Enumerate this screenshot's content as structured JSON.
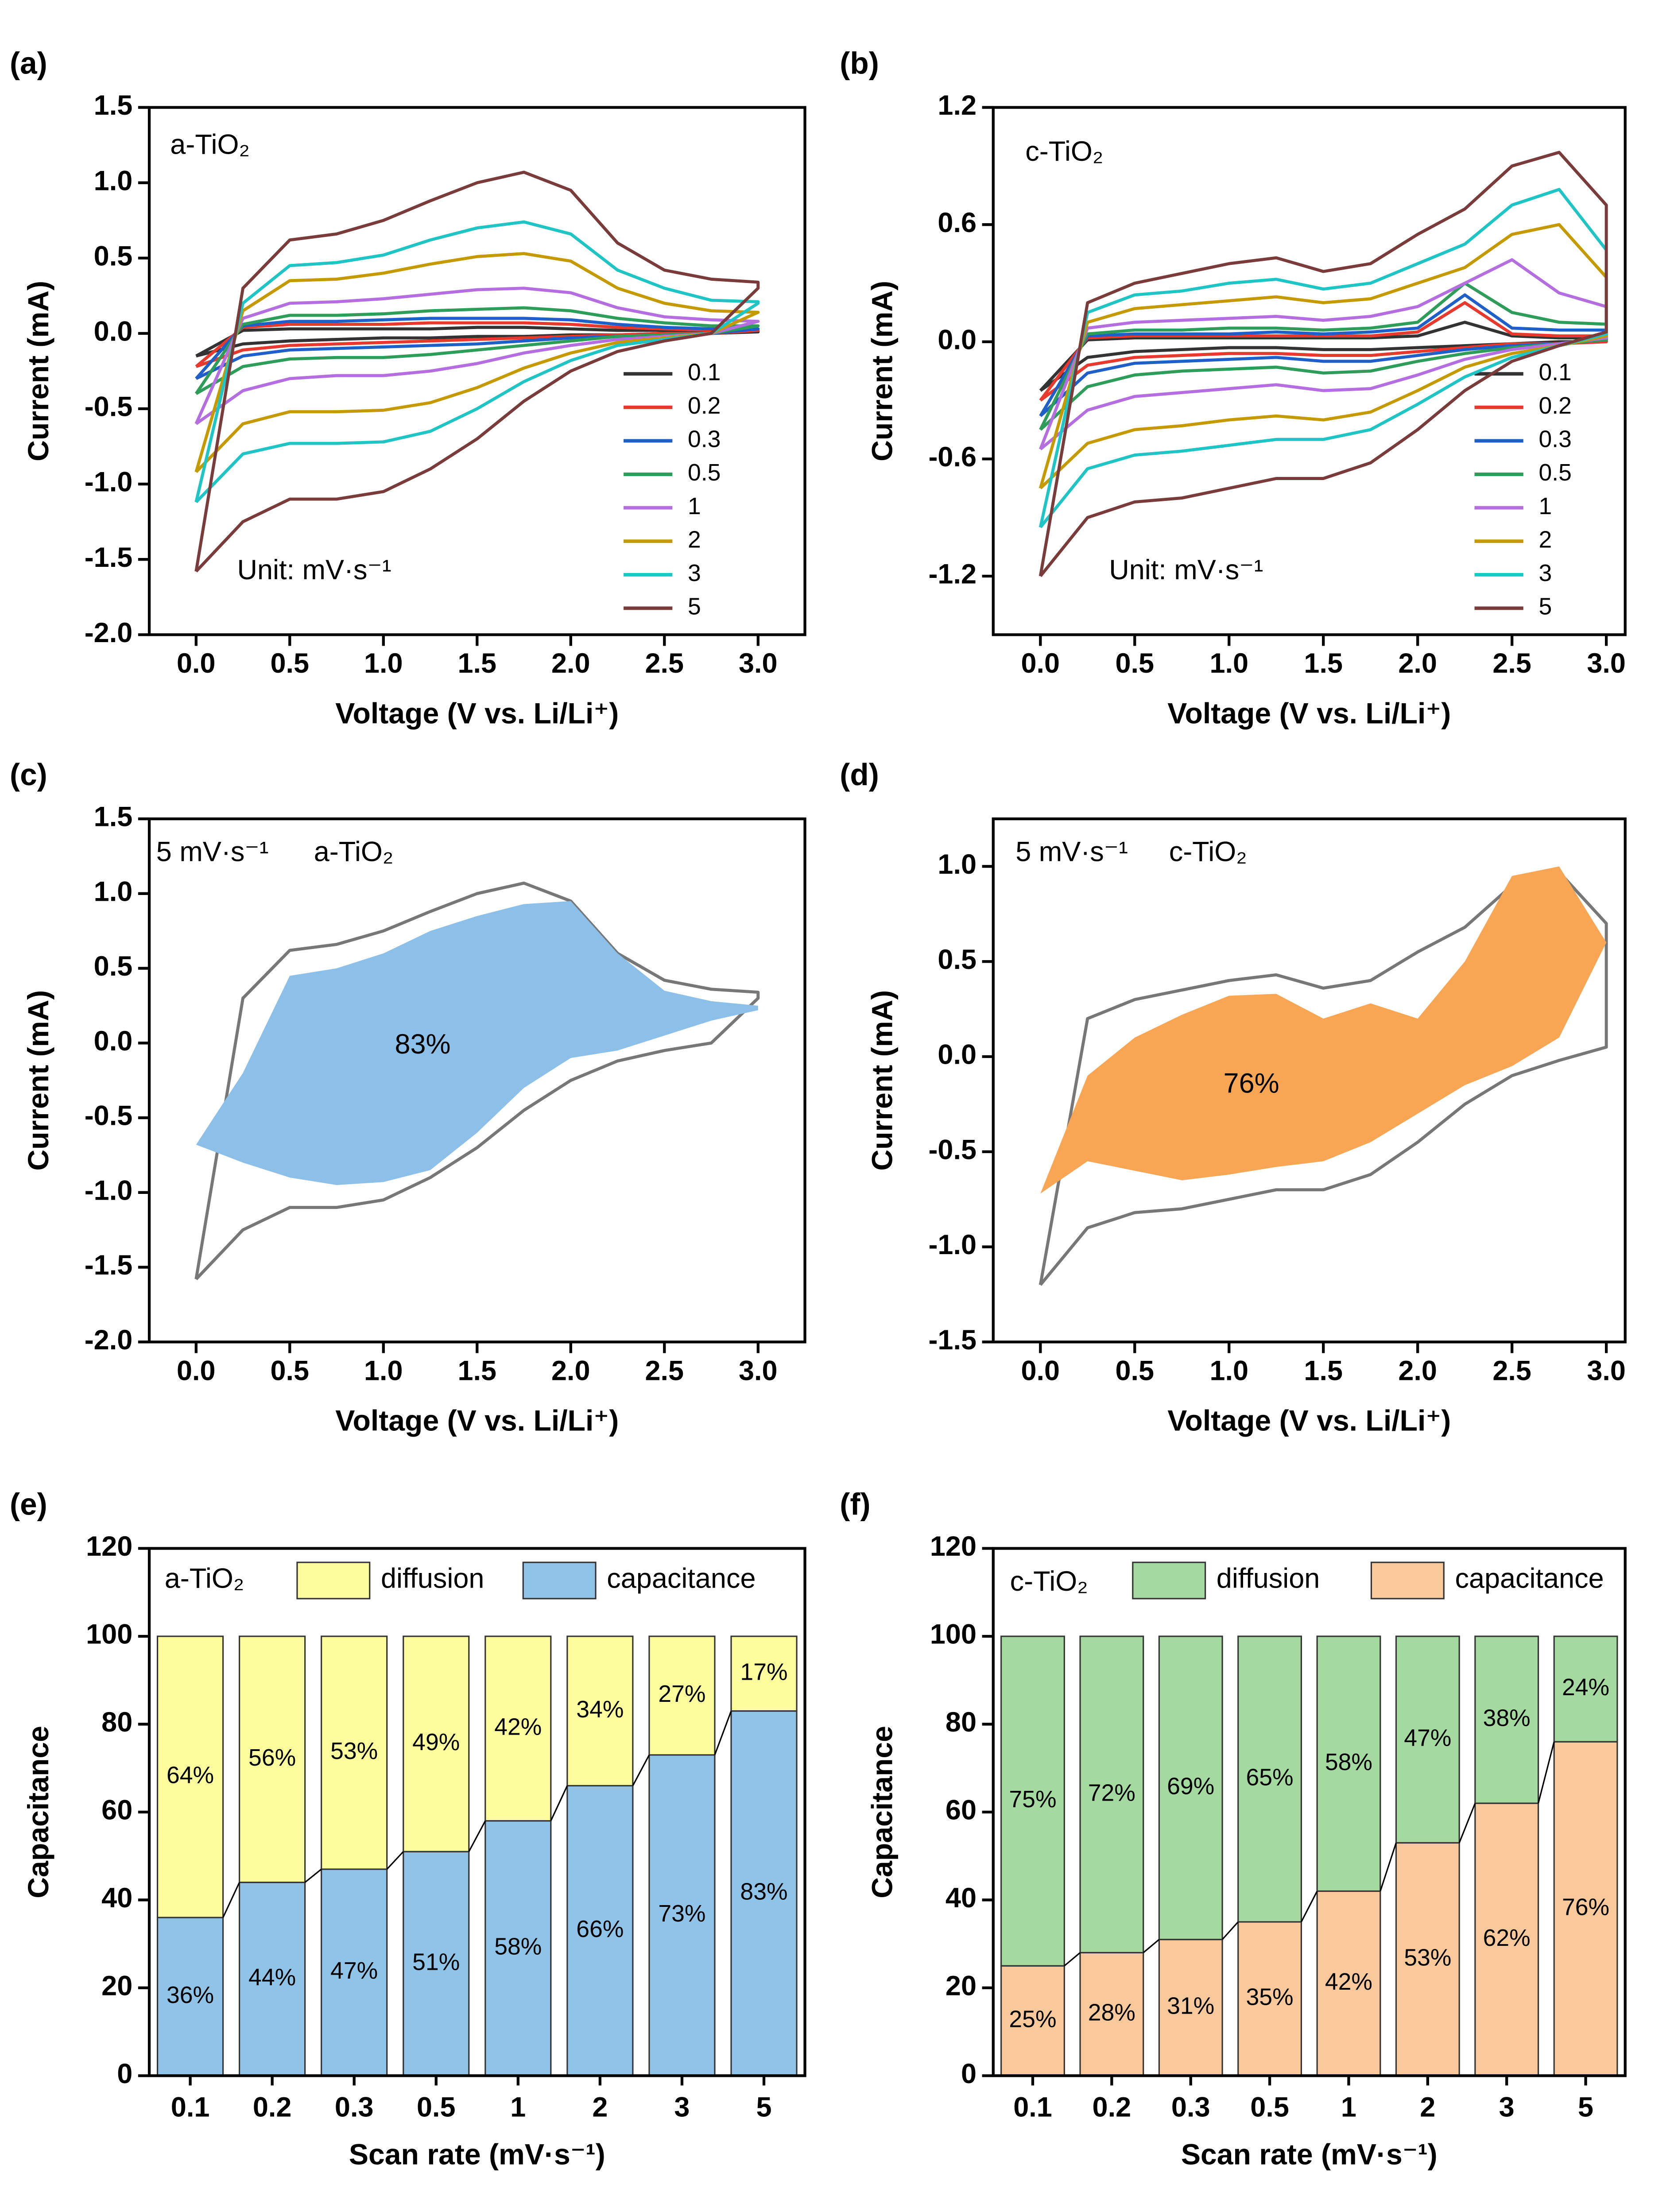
{
  "chart_data": [
    {
      "type": "line",
      "label": "(a)",
      "xlabel": "Voltage (V vs. Li/Li⁺)",
      "ylabel": "Current (mA)",
      "annotations": [
        "a-TiO₂",
        "Unit: mV·s⁻¹"
      ],
      "legend": "lower right",
      "xlim": [
        -0.25,
        3.25
      ],
      "ylim": [
        -2,
        1.5
      ],
      "xticks": [
        {
          "value": 0,
          "label": "0.0"
        },
        0.5,
        {
          "value": 1,
          "label": "1.0"
        },
        1.5,
        {
          "value": 2,
          "label": "2.0"
        },
        2.5,
        {
          "value": 3,
          "label": "3.0"
        }
      ],
      "yticks": [
        {
          "value": -2,
          "label": "-2.0"
        },
        -1.5,
        {
          "value": -1,
          "label": "-1.0"
        },
        -0.5,
        {
          "value": 0,
          "label": "0.0"
        },
        0.5,
        {
          "value": 1,
          "label": "1.0"
        },
        1.5
      ],
      "x": [
        0,
        0.25,
        0.5,
        0.75,
        1,
        1.25,
        1.5,
        1.75,
        2,
        2.25,
        2.5,
        2.75,
        3,
        3,
        2.75,
        2.5,
        2.25,
        2,
        1.75,
        1.5,
        1.25,
        1,
        0.75,
        0.5,
        0.25,
        0
      ],
      "series": [
        {
          "name": "0.1",
          "color": "#333333",
          "values": [
            -0.15,
            0.02,
            0.03,
            0.03,
            0.03,
            0.03,
            0.04,
            0.04,
            0.03,
            0.02,
            0.02,
            0.01,
            0.01,
            0.01,
            0,
            0,
            -0.01,
            -0.01,
            -0.02,
            -0.02,
            -0.03,
            -0.03,
            -0.04,
            -0.05,
            -0.07,
            -0.15
          ]
        },
        {
          "name": "0.2",
          "color": "#e8392f",
          "values": [
            -0.22,
            0.04,
            0.06,
            0.06,
            0.06,
            0.07,
            0.07,
            0.07,
            0.06,
            0.04,
            0.03,
            0.02,
            0.02,
            0.02,
            0,
            0,
            -0.01,
            -0.02,
            -0.03,
            -0.04,
            -0.05,
            -0.06,
            -0.07,
            -0.08,
            -0.11,
            -0.22
          ]
        },
        {
          "name": "0.3",
          "color": "#1f5fc8",
          "values": [
            -0.3,
            0.05,
            0.08,
            0.08,
            0.09,
            0.1,
            0.1,
            0.1,
            0.09,
            0.06,
            0.04,
            0.03,
            0.03,
            0.03,
            0,
            -0.01,
            -0.02,
            -0.03,
            -0.05,
            -0.07,
            -0.08,
            -0.09,
            -0.1,
            -0.11,
            -0.15,
            -0.3
          ]
        },
        {
          "name": "0.5",
          "color": "#2e9d5a",
          "values": [
            -0.4,
            0.06,
            0.12,
            0.12,
            0.13,
            0.15,
            0.16,
            0.17,
            0.15,
            0.1,
            0.07,
            0.05,
            0.05,
            0.05,
            0,
            -0.01,
            -0.02,
            -0.05,
            -0.08,
            -0.11,
            -0.14,
            -0.16,
            -0.16,
            -0.17,
            -0.22,
            -0.4
          ]
        },
        {
          "name": "1",
          "color": "#b46ee0",
          "values": [
            -0.6,
            0.1,
            0.2,
            0.21,
            0.23,
            0.26,
            0.29,
            0.3,
            0.27,
            0.17,
            0.11,
            0.09,
            0.08,
            0.08,
            0,
            -0.02,
            -0.04,
            -0.08,
            -0.13,
            -0.2,
            -0.25,
            -0.28,
            -0.28,
            -0.3,
            -0.38,
            -0.6
          ]
        },
        {
          "name": "2",
          "color": "#c49a00",
          "values": [
            -0.92,
            0.15,
            0.35,
            0.36,
            0.4,
            0.46,
            0.51,
            0.53,
            0.48,
            0.3,
            0.2,
            0.15,
            0.14,
            0.14,
            0,
            -0.03,
            -0.06,
            -0.13,
            -0.23,
            -0.36,
            -0.46,
            -0.51,
            -0.52,
            -0.52,
            -0.6,
            -0.92
          ]
        },
        {
          "name": "3",
          "color": "#1fc4c4",
          "values": [
            -1.12,
            0.2,
            0.45,
            0.47,
            0.52,
            0.62,
            0.7,
            0.74,
            0.66,
            0.42,
            0.3,
            0.22,
            0.21,
            0.2,
            0,
            -0.04,
            -0.08,
            -0.18,
            -0.32,
            -0.5,
            -0.65,
            -0.72,
            -0.73,
            -0.73,
            -0.8,
            -1.12
          ]
        },
        {
          "name": "5",
          "color": "#7a3b3b",
          "values": [
            -1.58,
            0.3,
            0.62,
            0.66,
            0.75,
            0.88,
            1.0,
            1.07,
            0.95,
            0.6,
            0.42,
            0.36,
            0.34,
            0.3,
            0,
            -0.05,
            -0.12,
            -0.25,
            -0.45,
            -0.7,
            -0.9,
            -1.05,
            -1.1,
            -1.1,
            -1.25,
            -1.58
          ]
        }
      ]
    },
    {
      "type": "line",
      "label": "(b)",
      "xlabel": "Voltage (V vs. Li/Li⁺)",
      "ylabel": "Current (mA)",
      "annotations": [
        "c-TiO₂",
        "Unit: mV·s⁻¹"
      ],
      "legend": "lower right",
      "xlim": [
        -0.25,
        3.1
      ],
      "ylim": [
        -1.5,
        1.2
      ],
      "xticks": [
        {
          "value": 0,
          "label": "0.0"
        },
        0.5,
        {
          "value": 1,
          "label": "1.0"
        },
        1.5,
        {
          "value": 2,
          "label": "2.0"
        },
        2.5,
        {
          "value": 3,
          "label": "3.0"
        }
      ],
      "yticks": [
        -1.2,
        -0.6,
        {
          "value": 0,
          "label": "0.0"
        },
        0.6,
        1.2
      ],
      "x": [
        0,
        0.25,
        0.5,
        0.75,
        1,
        1.25,
        1.5,
        1.75,
        2,
        2.25,
        2.5,
        2.75,
        3,
        3,
        2.75,
        2.5,
        2.25,
        2,
        1.75,
        1.5,
        1.25,
        1,
        0.75,
        0.5,
        0.25,
        0
      ],
      "series": [
        {
          "name": "0.1",
          "color": "#333333",
          "values": [
            -0.25,
            0.01,
            0.02,
            0.02,
            0.02,
            0.02,
            0.02,
            0.02,
            0.03,
            0.1,
            0.03,
            0.02,
            0.02,
            0,
            0,
            -0.01,
            -0.02,
            -0.03,
            -0.04,
            -0.04,
            -0.03,
            -0.03,
            -0.04,
            -0.05,
            -0.08,
            -0.25
          ]
        },
        {
          "name": "0.2",
          "color": "#e8392f",
          "values": [
            -0.3,
            0.02,
            0.03,
            0.03,
            0.03,
            0.03,
            0.03,
            0.03,
            0.05,
            0.2,
            0.04,
            0.03,
            0.03,
            0,
            -0.01,
            -0.01,
            -0.03,
            -0.05,
            -0.07,
            -0.07,
            -0.06,
            -0.06,
            -0.07,
            -0.08,
            -0.12,
            -0.3
          ]
        },
        {
          "name": "0.3",
          "color": "#1f5fc8",
          "values": [
            -0.38,
            0.03,
            0.04,
            0.04,
            0.04,
            0.05,
            0.04,
            0.05,
            0.07,
            0.24,
            0.07,
            0.06,
            0.06,
            0.01,
            -0.01,
            -0.02,
            -0.04,
            -0.07,
            -0.1,
            -0.1,
            -0.08,
            -0.09,
            -0.1,
            -0.11,
            -0.16,
            -0.38
          ]
        },
        {
          "name": "0.5",
          "color": "#2e9d5a",
          "values": [
            -0.45,
            0.04,
            0.06,
            0.06,
            0.07,
            0.07,
            0.06,
            0.07,
            0.1,
            0.3,
            0.15,
            0.1,
            0.09,
            0.01,
            -0.01,
            -0.03,
            -0.06,
            -0.1,
            -0.15,
            -0.16,
            -0.13,
            -0.14,
            -0.15,
            -0.17,
            -0.23,
            -0.45
          ]
        },
        {
          "name": "1",
          "color": "#b46ee0",
          "values": [
            -0.55,
            0.07,
            0.1,
            0.11,
            0.12,
            0.13,
            0.11,
            0.13,
            0.18,
            0.3,
            0.42,
            0.25,
            0.18,
            0.02,
            -0.01,
            -0.04,
            -0.09,
            -0.17,
            -0.24,
            -0.25,
            -0.22,
            -0.24,
            -0.26,
            -0.28,
            -0.35,
            -0.55
          ]
        },
        {
          "name": "2",
          "color": "#c49a00",
          "values": [
            -0.75,
            0.1,
            0.17,
            0.19,
            0.21,
            0.23,
            0.2,
            0.22,
            0.3,
            0.38,
            0.55,
            0.6,
            0.33,
            0.03,
            -0.02,
            -0.06,
            -0.13,
            -0.25,
            -0.36,
            -0.4,
            -0.38,
            -0.4,
            -0.43,
            -0.45,
            -0.52,
            -0.75
          ]
        },
        {
          "name": "3",
          "color": "#1fc4c4",
          "values": [
            -0.95,
            0.15,
            0.24,
            0.26,
            0.3,
            0.32,
            0.27,
            0.3,
            0.4,
            0.5,
            0.7,
            0.78,
            0.47,
            0.04,
            -0.02,
            -0.08,
            -0.18,
            -0.32,
            -0.45,
            -0.5,
            -0.5,
            -0.53,
            -0.56,
            -0.58,
            -0.65,
            -0.95
          ]
        },
        {
          "name": "5",
          "color": "#7a3b3b",
          "values": [
            -1.2,
            0.2,
            0.3,
            0.35,
            0.4,
            0.43,
            0.36,
            0.4,
            0.55,
            0.68,
            0.9,
            0.97,
            0.7,
            0.05,
            -0.02,
            -0.1,
            -0.25,
            -0.45,
            -0.62,
            -0.7,
            -0.7,
            -0.75,
            -0.8,
            -0.82,
            -0.9,
            -1.2
          ]
        }
      ]
    },
    {
      "type": "line",
      "label": "(c)",
      "xlabel": "Voltage (V vs. Li/Li⁺)",
      "ylabel": "Current (mA)",
      "annotations": [
        "5 mV·s⁻¹",
        "a-TiO₂",
        "83%"
      ],
      "xlim": [
        -0.25,
        3.25
      ],
      "ylim": [
        -2,
        1.5
      ],
      "xticks": [
        {
          "value": 0,
          "label": "0.0"
        },
        0.5,
        {
          "value": 1,
          "label": "1.0"
        },
        1.5,
        {
          "value": 2,
          "label": "2.0"
        },
        2.5,
        {
          "value": 3,
          "label": "3.0"
        }
      ],
      "yticks": [
        {
          "value": -2,
          "label": "-2.0"
        },
        -1.5,
        {
          "value": -1,
          "label": "-1.0"
        },
        -0.5,
        {
          "value": 0,
          "label": "0.0"
        },
        0.5,
        {
          "value": 1,
          "label": "1.0"
        },
        1.5
      ],
      "x": [
        0,
        0.25,
        0.5,
        0.75,
        1,
        1.25,
        1.5,
        1.75,
        2,
        2.25,
        2.5,
        2.75,
        3,
        3,
        2.75,
        2.5,
        2.25,
        2,
        1.75,
        1.5,
        1.25,
        1,
        0.75,
        0.5,
        0.25,
        0
      ],
      "series": [
        {
          "color": "#777777",
          "values": [
            -1.58,
            0.3,
            0.62,
            0.66,
            0.75,
            0.88,
            1.0,
            1.07,
            0.95,
            0.6,
            0.42,
            0.36,
            0.34,
            0.3,
            0,
            -0.05,
            -0.12,
            -0.25,
            -0.45,
            -0.7,
            -0.9,
            -1.05,
            -1.1,
            -1.1,
            -1.25,
            -1.58
          ]
        },
        {
          "color": "#8cc0e8",
          "fill": true,
          "values": [
            -0.68,
            -0.2,
            0.45,
            0.5,
            0.6,
            0.75,
            0.85,
            0.93,
            0.95,
            0.6,
            0.35,
            0.28,
            0.25,
            0.22,
            0.15,
            0.05,
            -0.05,
            -0.1,
            -0.3,
            -0.6,
            -0.85,
            -0.93,
            -0.95,
            -0.9,
            -0.8,
            -0.68
          ]
        }
      ]
    },
    {
      "type": "line",
      "label": "(d)",
      "xlabel": "Voltage (V vs. Li/Li⁺)",
      "ylabel": "Current (mA)",
      "annotations": [
        "5 mV·s⁻¹",
        "c-TiO₂",
        "76%"
      ],
      "xlim": [
        -0.25,
        3.1
      ],
      "ylim": [
        -1.5,
        1.25
      ],
      "xticks": [
        {
          "value": 0,
          "label": "0.0"
        },
        0.5,
        {
          "value": 1,
          "label": "1.0"
        },
        1.5,
        {
          "value": 2,
          "label": "2.0"
        },
        2.5,
        {
          "value": 3,
          "label": "3.0"
        }
      ],
      "yticks": [
        -1.5,
        {
          "value": -1,
          "label": "-1.0"
        },
        -0.5,
        {
          "value": 0,
          "label": "0.0"
        },
        0.5,
        {
          "value": 1,
          "label": "1.0"
        }
      ],
      "x": [
        0,
        0.25,
        0.5,
        0.75,
        1,
        1.25,
        1.5,
        1.75,
        2,
        2.25,
        2.5,
        2.75,
        3,
        3,
        2.75,
        2.5,
        2.25,
        2,
        1.75,
        1.5,
        1.25,
        1,
        0.75,
        0.5,
        0.25,
        0
      ],
      "series": [
        {
          "color": "#777777",
          "values": [
            -1.2,
            0.2,
            0.3,
            0.35,
            0.4,
            0.43,
            0.36,
            0.4,
            0.55,
            0.68,
            0.9,
            0.97,
            0.7,
            0.05,
            -0.02,
            -0.1,
            -0.25,
            -0.45,
            -0.62,
            -0.7,
            -0.7,
            -0.75,
            -0.8,
            -0.82,
            -0.9,
            -1.2
          ]
        },
        {
          "color": "#f8a654",
          "fill": true,
          "values": [
            -0.72,
            -0.1,
            0.1,
            0.22,
            0.32,
            0.33,
            0.2,
            0.28,
            0.2,
            0.5,
            0.95,
            1.0,
            0.6,
            0.6,
            0.1,
            -0.05,
            -0.15,
            -0.3,
            -0.45,
            -0.55,
            -0.58,
            -0.62,
            -0.65,
            -0.6,
            -0.55,
            -0.72
          ]
        }
      ]
    },
    {
      "type": "bar",
      "stacked": true,
      "label": "(e)",
      "xlabel": "Scan rate (mV·s⁻¹)",
      "ylabel": "Capacitance",
      "annotations": [
        "a-TiO₂"
      ],
      "legend": "top",
      "ylim": [
        0,
        120
      ],
      "yticks": [
        0,
        20,
        40,
        60,
        80,
        100,
        120
      ],
      "categories": [
        "0.1",
        "0.2",
        "0.3",
        "0.5",
        "1",
        "2",
        "3",
        "5"
      ],
      "series": [
        {
          "name": "capacitance",
          "color": "#8fc3e8",
          "values": [
            36,
            44,
            47,
            51,
            58,
            66,
            73,
            83
          ],
          "value_labels": [
            "36%",
            "44%",
            "47%",
            "51%",
            "58%",
            "66%",
            "73%",
            "83%"
          ]
        },
        {
          "name": "diffusion",
          "color": "#fdfd9e",
          "values": [
            64,
            56,
            53,
            49,
            42,
            34,
            27,
            17
          ],
          "value_labels": [
            "64%",
            "56%",
            "53%",
            "49%",
            "42%",
            "34%",
            "27%",
            "17%"
          ]
        }
      ]
    },
    {
      "type": "bar",
      "stacked": true,
      "label": "(f)",
      "xlabel": "Scan rate (mV·s⁻¹)",
      "ylabel": "Capacitance",
      "annotations": [
        "c-TiO₂"
      ],
      "legend": "top",
      "ylim": [
        0,
        120
      ],
      "yticks": [
        0,
        20,
        40,
        60,
        80,
        100,
        120
      ],
      "categories": [
        "0.1",
        "0.2",
        "0.3",
        "0.5",
        "1",
        "2",
        "3",
        "5"
      ],
      "series": [
        {
          "name": "capacitance",
          "color": "#f9c89b",
          "values": [
            25,
            28,
            31,
            35,
            42,
            53,
            62,
            76
          ],
          "value_labels": [
            "25%",
            "28%",
            "31%",
            "35%",
            "42%",
            "53%",
            "62%",
            "76%"
          ]
        },
        {
          "name": "diffusion",
          "color": "#a4d9a0",
          "values": [
            75,
            72,
            69,
            65,
            58,
            47,
            38,
            24
          ],
          "value_labels": [
            "75%",
            "72%",
            "69%",
            "65%",
            "58%",
            "47%",
            "38%",
            "24%"
          ]
        }
      ]
    }
  ]
}
